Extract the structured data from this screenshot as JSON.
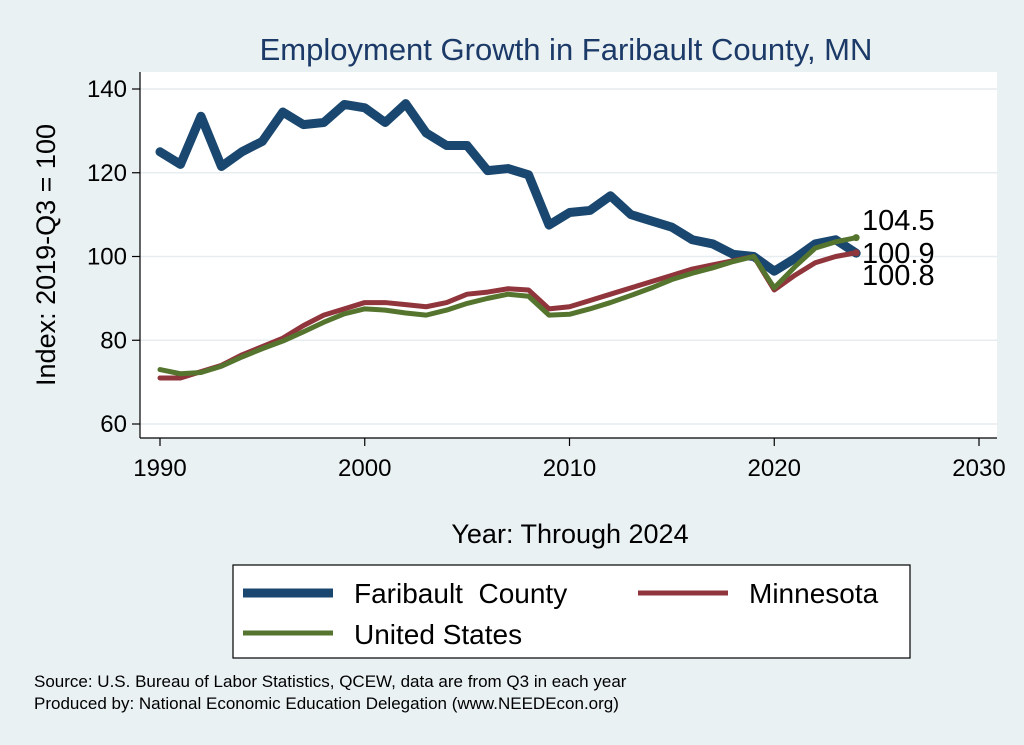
{
  "chart_data": {
    "type": "line",
    "title": "Employment Growth in Faribault County, MN",
    "xlabel": "Year: Through 2024",
    "ylabel": "Index: 2019-Q3 = 100",
    "xlim": [
      1990,
      2030
    ],
    "ylim": [
      57,
      142
    ],
    "x_ticks": [
      1990,
      2000,
      2010,
      2020,
      2030
    ],
    "y_ticks": [
      60,
      80,
      100,
      120,
      140
    ],
    "grid": "horizontal",
    "legend_position": "bottom",
    "x": [
      1990,
      1991,
      1992,
      1993,
      1994,
      1995,
      1996,
      1997,
      1998,
      1999,
      2000,
      2001,
      2002,
      2003,
      2004,
      2005,
      2006,
      2007,
      2008,
      2009,
      2010,
      2011,
      2012,
      2013,
      2014,
      2015,
      2016,
      2017,
      2018,
      2019,
      2020,
      2021,
      2022,
      2023,
      2024
    ],
    "series": [
      {
        "name": "Faribault  County",
        "color": "#1a476f",
        "values": [
          125.0,
          122.0,
          133.5,
          121.5,
          125.0,
          127.5,
          134.5,
          131.5,
          132.0,
          136.3,
          135.5,
          132.0,
          136.5,
          129.5,
          126.5,
          126.5,
          120.5,
          121.0,
          119.5,
          107.5,
          110.5,
          111.0,
          114.5,
          110.0,
          108.5,
          107.0,
          104.0,
          103.0,
          100.5,
          100.0,
          96.5,
          99.5,
          103.0,
          104.0,
          100.8
        ]
      },
      {
        "name": "Minnesota",
        "color": "#90353b",
        "values": [
          71.0,
          71.0,
          72.5,
          74.0,
          76.5,
          78.5,
          80.5,
          83.5,
          86.0,
          87.5,
          89.0,
          89.0,
          88.5,
          88.0,
          89.0,
          91.0,
          91.5,
          92.3,
          92.0,
          87.5,
          88.0,
          89.5,
          91.0,
          92.5,
          94.0,
          95.5,
          97.0,
          98.0,
          99.0,
          100.0,
          92.0,
          95.5,
          98.5,
          100.0,
          100.9
        ]
      },
      {
        "name": "United States",
        "color": "#55752f",
        "values": [
          73.0,
          72.0,
          72.3,
          73.8,
          76.0,
          78.0,
          79.8,
          82.0,
          84.3,
          86.3,
          87.5,
          87.2,
          86.5,
          86.0,
          87.2,
          88.8,
          90.0,
          91.0,
          90.5,
          86.0,
          86.2,
          87.5,
          89.0,
          90.7,
          92.5,
          94.5,
          96.0,
          97.3,
          98.8,
          100.0,
          92.5,
          97.5,
          102.0,
          103.5,
          104.5
        ]
      }
    ],
    "end_labels": [
      "104.5",
      "100.9",
      "100.8"
    ]
  },
  "source_note": "Source: U.S. Bureau of Labor Statistics, QCEW, data are from Q3 in each year",
  "produced_note": "Produced by: National Economic Education Delegation (www.NEEDEcon.org)"
}
